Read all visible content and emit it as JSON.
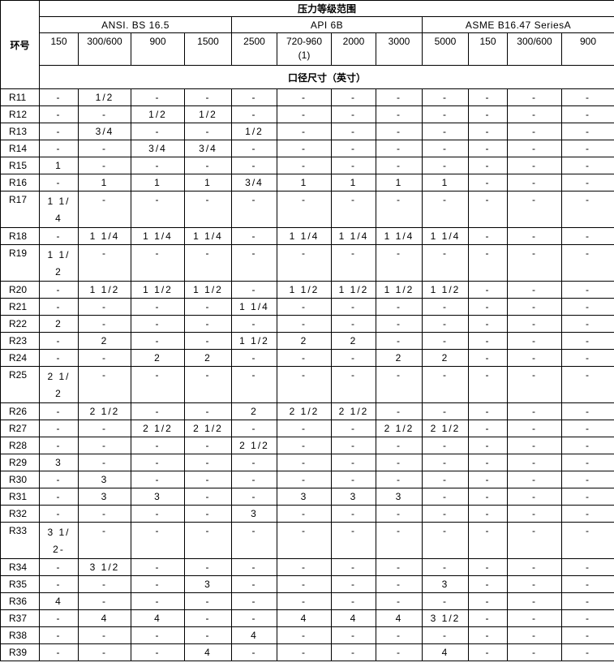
{
  "header": {
    "ring_no": "环号",
    "pressure_range": "压力等级范围",
    "standards": [
      "ANSI. BS 16.5",
      "API 6B",
      "ASME B16.47 SeriesA"
    ],
    "classes": [
      "150",
      "300/600",
      "900",
      "1500",
      "2500",
      "720-960\n(1)",
      "2000",
      "3000",
      "5000",
      "150",
      "300/600",
      "900"
    ],
    "bore_size": "口径尺寸（英寸）"
  },
  "rows": [
    {
      "id": "R11",
      "v": [
        "-",
        "1/2",
        "-",
        "-",
        "-",
        "-",
        "-",
        "-",
        "-",
        "-",
        "-",
        "-"
      ]
    },
    {
      "id": "R12",
      "v": [
        "-",
        "-",
        "1/2",
        "1/2",
        "-",
        "-",
        "-",
        "-",
        "-",
        "-",
        "-",
        "-"
      ]
    },
    {
      "id": "R13",
      "v": [
        "-",
        "3/4",
        "-",
        "-",
        "1/2",
        "-",
        "-",
        "-",
        "-",
        "-",
        "-",
        "-"
      ]
    },
    {
      "id": "R14",
      "v": [
        "-",
        "-",
        "3/4",
        "3/4",
        "-",
        "-",
        "-",
        "-",
        "-",
        "-",
        "-",
        "-"
      ]
    },
    {
      "id": "R15",
      "v": [
        "1",
        "-",
        "-",
        "-",
        "-",
        "-",
        "-",
        "-",
        "-",
        "-",
        "-",
        "-"
      ]
    },
    {
      "id": "R16",
      "v": [
        "-",
        "1",
        "1",
        "1",
        "3/4",
        "1",
        "1",
        "1",
        "1",
        "-",
        "-",
        "-"
      ]
    },
    {
      "id": "R17",
      "v": [
        "1 1/4",
        "-",
        "-",
        "-",
        "-",
        "-",
        "-",
        "-",
        "-",
        "-",
        "-",
        "-"
      ]
    },
    {
      "id": "R18",
      "v": [
        "-",
        "1 1/4",
        "1 1/4",
        "1 1/4",
        "-",
        "1 1/4",
        "1 1/4",
        "1 1/4",
        "1 1/4",
        "-",
        "-",
        "-"
      ]
    },
    {
      "id": "R19",
      "v": [
        "1 1/2",
        "-",
        "-",
        "-",
        "-",
        "-",
        "-",
        "-",
        "-",
        "-",
        "-",
        "-"
      ]
    },
    {
      "id": "R20",
      "v": [
        "-",
        "1 1/2",
        "1 1/2",
        "1 1/2",
        "-",
        "1 1/2",
        "1 1/2",
        "1 1/2",
        "1 1/2",
        "-",
        "-",
        "-"
      ]
    },
    {
      "id": "R21",
      "v": [
        "-",
        "-",
        "-",
        "-",
        "1 1/4",
        "-",
        "-",
        "-",
        "-",
        "-",
        "-",
        "-"
      ]
    },
    {
      "id": "R22",
      "v": [
        "2",
        "-",
        "-",
        "-",
        "-",
        "-",
        "-",
        "-",
        "-",
        "-",
        "-",
        "-"
      ]
    },
    {
      "id": "R23",
      "v": [
        "-",
        "2",
        "-",
        "-",
        "1 1/2",
        "2",
        "2",
        "-",
        "-",
        "-",
        "-",
        "-"
      ]
    },
    {
      "id": "R24",
      "v": [
        "-",
        "-",
        "2",
        "2",
        "-",
        "-",
        "-",
        "2",
        "2",
        "-",
        "-",
        "-"
      ]
    },
    {
      "id": "R25",
      "v": [
        "2 1/2",
        "-",
        "-",
        "-",
        "-",
        "-",
        "-",
        "-",
        "-",
        "-",
        "-",
        "-"
      ]
    },
    {
      "id": "R26",
      "v": [
        "-",
        "2 1/2",
        "-",
        "-",
        "2",
        "2 1/2",
        "2 1/2",
        "-",
        "-",
        "-",
        "-",
        "-"
      ]
    },
    {
      "id": "R27",
      "v": [
        "-",
        "-",
        "2 1/2",
        "2 1/2",
        "-",
        "-",
        "-",
        "2 1/2",
        "2 1/2",
        "-",
        "-",
        "-"
      ]
    },
    {
      "id": "R28",
      "v": [
        "-",
        "-",
        "-",
        "-",
        "2 1/2",
        "-",
        "-",
        "-",
        "-",
        "-",
        "-",
        "-"
      ]
    },
    {
      "id": "R29",
      "v": [
        "3",
        "-",
        "-",
        "-",
        "-",
        "-",
        "-",
        "-",
        "-",
        "-",
        "-",
        "-"
      ]
    },
    {
      "id": "R30",
      "v": [
        "-",
        "3",
        "-",
        "-",
        "-",
        "-",
        "-",
        "-",
        "-",
        "-",
        "-",
        "-"
      ]
    },
    {
      "id": "R31",
      "v": [
        "-",
        "3",
        "3",
        "-",
        "-",
        "3",
        "3",
        "3",
        "-",
        "-",
        "-",
        "-"
      ]
    },
    {
      "id": "R32",
      "v": [
        "-",
        "-",
        "-",
        "-",
        "3",
        "-",
        "-",
        "-",
        "-",
        "-",
        "-",
        "-"
      ]
    },
    {
      "id": "R33",
      "v": [
        "3 1/2-",
        "-",
        "-",
        "-",
        "-",
        "-",
        "-",
        "-",
        "-",
        "-",
        "-",
        "-"
      ]
    },
    {
      "id": "R34",
      "v": [
        "-",
        "3 1/2",
        "-",
        "-",
        "-",
        "-",
        "-",
        "-",
        "-",
        "-",
        "-",
        "-"
      ]
    },
    {
      "id": "R35",
      "v": [
        "-",
        "-",
        "-",
        "3",
        "-",
        "-",
        "-",
        "-",
        "3",
        "-",
        "-",
        "-"
      ]
    },
    {
      "id": "R36",
      "v": [
        "4",
        "-",
        "-",
        "-",
        "-",
        "-",
        "-",
        "-",
        "-",
        "-",
        "-",
        "-"
      ]
    },
    {
      "id": "R37",
      "v": [
        "-",
        "4",
        "4",
        "-",
        "-",
        "4",
        "4",
        "4",
        "3 1/2",
        "-",
        "-",
        "-"
      ]
    },
    {
      "id": "R38",
      "v": [
        "-",
        "-",
        "-",
        "-",
        "4",
        "-",
        "-",
        "-",
        "-",
        "-",
        "-",
        "-"
      ]
    },
    {
      "id": "R39",
      "v": [
        "-",
        "-",
        "-",
        "4",
        "-",
        "-",
        "-",
        "-",
        "4",
        "-",
        "-",
        "-"
      ]
    }
  ]
}
